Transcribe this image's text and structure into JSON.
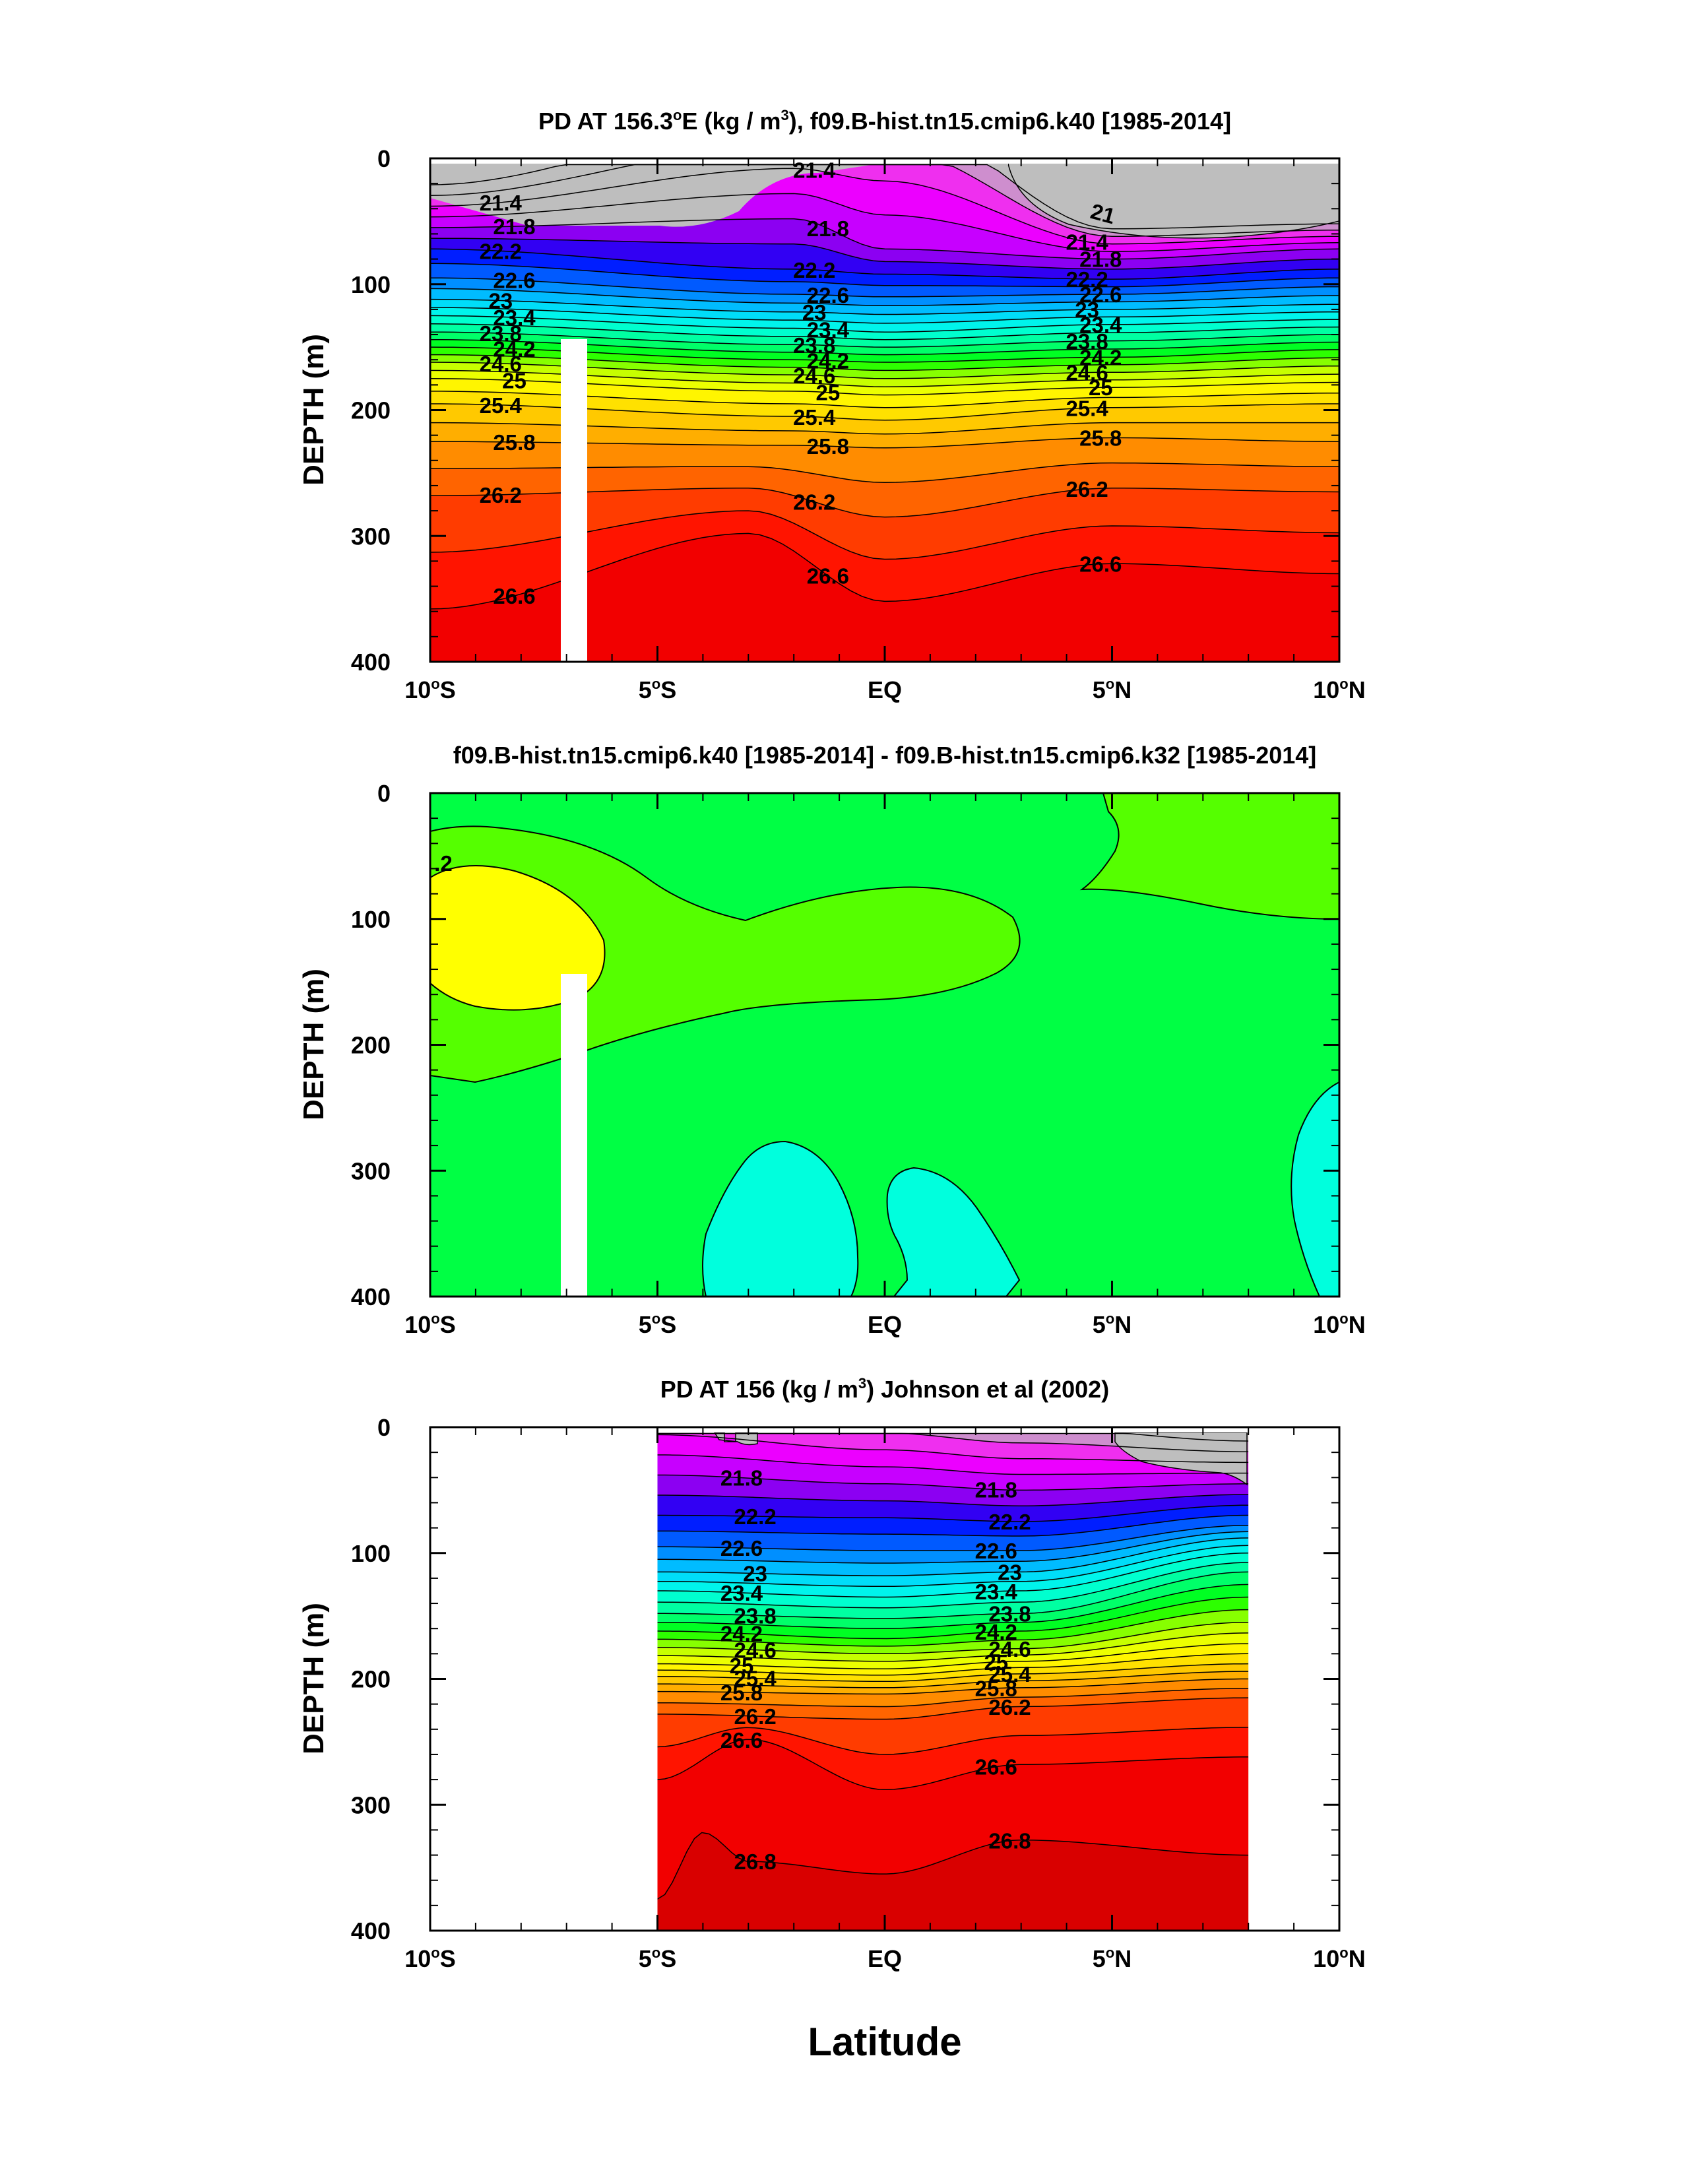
{
  "figure": {
    "xlabel": "Latitude",
    "x_ticks": [
      "10°S",
      "5°S",
      "EQ",
      "5°N",
      "10°N"
    ],
    "y_ticks": [
      "0",
      "100",
      "200",
      "300",
      "400"
    ]
  },
  "chart_data": [
    {
      "type": "contour",
      "title": "PD AT 156.3°E (kg / m³), f09.B-hist.tn15.cmip6.k40 [1985-2014]",
      "title_parts": [
        "PD AT 156.3",
        "o",
        "E (kg / m",
        "3",
        "), f09.B-hist.tn15.cmip6.k40 [1985-2014]"
      ],
      "xlabel": "Latitude",
      "ylabel": "DEPTH (m)",
      "xlim": [
        -10,
        10
      ],
      "ylim": [
        400,
        0
      ],
      "x_ticks": [
        "10°S",
        "5°S",
        "EQ",
        "5°N",
        "10°N"
      ],
      "y_ticks": [
        0,
        100,
        200,
        300,
        400
      ],
      "contour_levels": [
        21.0,
        21.2,
        21.4,
        21.6,
        21.8,
        22.0,
        22.2,
        22.4,
        22.6,
        22.8,
        23.0,
        23.2,
        23.4,
        23.6,
        23.8,
        24.0,
        24.2,
        24.4,
        24.6,
        24.8,
        25.0,
        25.2,
        25.4,
        25.6,
        25.8,
        26.0,
        26.2,
        26.4,
        26.6
      ],
      "labelled_isopycnals": [
        {
          "value": "21.4",
          "depth_at_lat": [
            [
              -10,
              38
            ],
            [
              -2,
              8
            ],
            [
              0,
              18
            ],
            [
              5,
              68
            ],
            [
              10,
              62
            ]
          ]
        },
        {
          "value": "21.8",
          "depth_at_lat": [
            [
              -10,
              55
            ],
            [
              -2,
              48
            ],
            [
              0,
              72
            ],
            [
              5,
              80
            ],
            [
              10,
              72
            ]
          ]
        },
        {
          "value": "22.2",
          "depth_at_lat": [
            [
              -10,
              72
            ],
            [
              -2,
              88
            ],
            [
              0,
              92
            ],
            [
              5,
              96
            ],
            [
              10,
              88
            ]
          ]
        },
        {
          "value": "22.6",
          "depth_at_lat": [
            [
              -10,
              95
            ],
            [
              -2,
              108
            ],
            [
              0,
              110
            ],
            [
              5,
              108
            ],
            [
              10,
              102
            ]
          ]
        },
        {
          "value": "23",
          "depth_at_lat": [
            [
              -10,
              112
            ],
            [
              -2,
              122
            ],
            [
              0,
              124
            ],
            [
              5,
              120
            ],
            [
              10,
              116
            ]
          ]
        },
        {
          "value": "23.4",
          "depth_at_lat": [
            [
              -10,
              125
            ],
            [
              -2,
              135
            ],
            [
              0,
              138
            ],
            [
              5,
              132
            ],
            [
              10,
              128
            ]
          ]
        },
        {
          "value": "23.8",
          "depth_at_lat": [
            [
              -10,
              138
            ],
            [
              -2,
              148
            ],
            [
              0,
              150
            ],
            [
              5,
              145
            ],
            [
              10,
              140
            ]
          ]
        },
        {
          "value": "24.2",
          "depth_at_lat": [
            [
              -10,
              150
            ],
            [
              -2,
              160
            ],
            [
              0,
              162
            ],
            [
              5,
              158
            ],
            [
              10,
              152
            ]
          ]
        },
        {
          "value": "24.6",
          "depth_at_lat": [
            [
              -10,
              162
            ],
            [
              -2,
              172
            ],
            [
              0,
              175
            ],
            [
              5,
              170
            ],
            [
              10,
              165
            ]
          ]
        },
        {
          "value": "25",
          "depth_at_lat": [
            [
              -10,
              175
            ],
            [
              -2,
              185
            ],
            [
              0,
              188
            ],
            [
              5,
              182
            ],
            [
              10,
              178
            ]
          ]
        },
        {
          "value": "25.4",
          "depth_at_lat": [
            [
              -10,
              195
            ],
            [
              -2,
              205
            ],
            [
              0,
              208
            ],
            [
              5,
              198
            ],
            [
              10,
              195
            ]
          ]
        },
        {
          "value": "25.8",
          "depth_at_lat": [
            [
              -10,
              225
            ],
            [
              -2,
              228
            ],
            [
              0,
              230
            ],
            [
              5,
              222
            ],
            [
              10,
              225
            ]
          ]
        },
        {
          "value": "26.2",
          "depth_at_lat": [
            [
              -10,
              268
            ],
            [
              -3,
              262
            ],
            [
              0,
              285
            ],
            [
              5,
              262
            ],
            [
              10,
              265
            ]
          ]
        },
        {
          "value": "26.6",
          "depth_at_lat": [
            [
              -10,
              358
            ],
            [
              -3,
              298
            ],
            [
              0,
              352
            ],
            [
              5,
              322
            ],
            [
              10,
              330
            ]
          ]
        }
      ],
      "contour_labels": [
        "21.4",
        "21.8",
        "22.2",
        "22.6",
        "23",
        "23.4",
        "23.8",
        "24.2",
        "24.6",
        "25",
        "25.4",
        "25.8",
        "26.2",
        "21"
      ],
      "masked_column": {
        "lat": [
          -7.1,
          -6.6
        ],
        "depth": [
          145,
          400
        ]
      },
      "colors": {
        "light": "#bebebe",
        "dark": "#7e7e7e",
        "magenta": "#ff00ff",
        "blue": "#0000ff",
        "cyan": "#00ffff",
        "green": "#00ff00",
        "yellow": "#ffff00",
        "orange": "#ff9900",
        "red": "#ff0000",
        "deep_red": "#cc0000"
      }
    },
    {
      "type": "contour",
      "title": "f09.B-hist.tn15.cmip6.k40 [1985-2014] - f09.B-hist.tn15.cmip6.k32 [1985-2014]",
      "xlabel": "Latitude",
      "ylabel": "DEPTH (m)",
      "xlim": [
        -10,
        10
      ],
      "ylim": [
        400,
        0
      ],
      "x_ticks": [
        "10°S",
        "5°S",
        "EQ",
        "5°N",
        "10°N"
      ],
      "y_ticks": [
        0,
        100,
        200,
        300,
        400
      ],
      "contour_labels": [
        ".2"
      ],
      "regions": [
        {
          "name": "background",
          "color": "#00ff44"
        },
        {
          "name": "positive-band",
          "color": "#55ff00"
        },
        {
          "name": "high-positive",
          "color": "#ffff00"
        },
        {
          "name": "negative",
          "color": "#00ffdd"
        }
      ],
      "masked_column": {
        "lat": [
          -7.1,
          -6.6
        ],
        "depth": [
          145,
          400
        ]
      }
    },
    {
      "type": "contour",
      "title": "PD AT 156 (kg / m³) Johnson et al (2002)",
      "title_parts": [
        "PD AT 156 (kg / m",
        "3",
        ") Johnson et al (2002)"
      ],
      "xlabel": "Latitude",
      "ylabel": "DEPTH (m)",
      "xlim": [
        -10,
        10
      ],
      "ylim": [
        400,
        0
      ],
      "data_xlim": [
        -5,
        8
      ],
      "x_ticks": [
        "10°S",
        "5°S",
        "EQ",
        "5°N",
        "10°N"
      ],
      "y_ticks": [
        0,
        100,
        200,
        300,
        400
      ],
      "contour_levels": [
        21.0,
        21.2,
        21.4,
        21.6,
        21.8,
        22.0,
        22.2,
        22.4,
        22.6,
        22.8,
        23.0,
        23.2,
        23.4,
        23.6,
        23.8,
        24.0,
        24.2,
        24.4,
        24.6,
        24.8,
        25.0,
        25.2,
        25.4,
        25.6,
        25.8,
        26.0,
        26.2,
        26.4,
        26.6,
        26.8
      ],
      "labelled_isopycnals": [
        {
          "value": "21.8",
          "depth_at_lat": [
            [
              -5,
              38
            ],
            [
              0,
              45
            ],
            [
              3,
              50
            ],
            [
              8,
              45
            ]
          ]
        },
        {
          "value": "22.2",
          "depth_at_lat": [
            [
              -5,
              70
            ],
            [
              0,
              72
            ],
            [
              3,
              75
            ],
            [
              8,
              62
            ]
          ]
        },
        {
          "value": "22.6",
          "depth_at_lat": [
            [
              -5,
              95
            ],
            [
              0,
              98
            ],
            [
              3,
              98
            ],
            [
              8,
              78
            ]
          ]
        },
        {
          "value": "23",
          "depth_at_lat": [
            [
              -5,
              115
            ],
            [
              0,
              118
            ],
            [
              3,
              115
            ],
            [
              8,
              88
            ]
          ]
        },
        {
          "value": "23.4",
          "depth_at_lat": [
            [
              -5,
              130
            ],
            [
              0,
              135
            ],
            [
              3,
              130
            ],
            [
              8,
              100
            ]
          ]
        },
        {
          "value": "23.8",
          "depth_at_lat": [
            [
              -5,
              148
            ],
            [
              0,
              152
            ],
            [
              3,
              148
            ],
            [
              8,
              115
            ]
          ]
        },
        {
          "value": "24.2",
          "depth_at_lat": [
            [
              -5,
              162
            ],
            [
              0,
              168
            ],
            [
              3,
              162
            ],
            [
              8,
              135
            ]
          ]
        },
        {
          "value": "24.6",
          "depth_at_lat": [
            [
              -5,
              175
            ],
            [
              0,
              180
            ],
            [
              3,
              176
            ],
            [
              8,
              155
            ]
          ]
        },
        {
          "value": "25",
          "depth_at_lat": [
            [
              -5,
              188
            ],
            [
              0,
              192
            ],
            [
              3,
              186
            ],
            [
              8,
              172
            ]
          ]
        },
        {
          "value": "25.4",
          "depth_at_lat": [
            [
              -5,
              198
            ],
            [
              0,
              202
            ],
            [
              3,
              196
            ],
            [
              8,
              188
            ]
          ]
        },
        {
          "value": "25.8",
          "depth_at_lat": [
            [
              -5,
              210
            ],
            [
              0,
              212
            ],
            [
              3,
              207
            ],
            [
              8,
              200
            ]
          ]
        },
        {
          "value": "26.2",
          "depth_at_lat": [
            [
              -5,
              228
            ],
            [
              0,
              232
            ],
            [
              3,
              222
            ],
            [
              8,
              215
            ]
          ]
        },
        {
          "value": "26.6",
          "depth_at_lat": [
            [
              -5,
              280
            ],
            [
              -3,
              248
            ],
            [
              0,
              288
            ],
            [
              3,
              268
            ],
            [
              8,
              262
            ]
          ]
        },
        {
          "value": "26.8",
          "depth_at_lat": [
            [
              -5,
              375
            ],
            [
              -4,
              322
            ],
            [
              -3,
              345
            ],
            [
              0,
              355
            ],
            [
              3,
              328
            ],
            [
              8,
              340
            ]
          ]
        }
      ],
      "contour_labels": [
        "21.8",
        "22.2",
        "22.6",
        "23",
        "23.4",
        "23.8",
        "24.2",
        "24.6",
        "25",
        "25.4",
        "25.8",
        "26.2",
        "26.6"
      ],
      "colors": {
        "light": "#bebebe",
        "magenta": "#ff00ff",
        "blue": "#0000ff",
        "cyan": "#00ffff",
        "green": "#00ff00",
        "yellow": "#ffff00",
        "orange": "#ff9900",
        "red": "#ff0000",
        "deep_red": "#cc0000"
      }
    }
  ]
}
